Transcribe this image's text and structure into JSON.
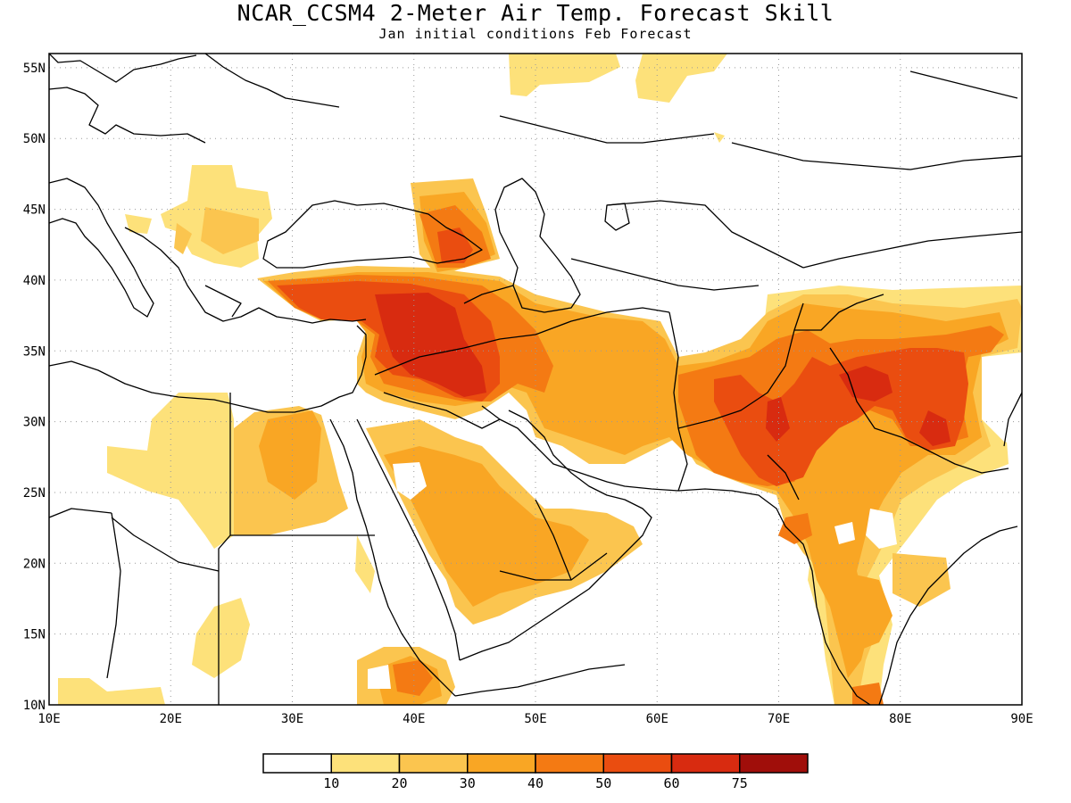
{
  "title": "NCAR_CCSM4 2-Meter Air Temp. Forecast Skill",
  "subtitle": "Jan initial conditions  Feb Forecast",
  "map": {
    "lon_range": [
      10,
      90
    ],
    "lat_range": [
      10,
      56
    ],
    "lon_ticks": [
      "10E",
      "20E",
      "30E",
      "40E",
      "50E",
      "60E",
      "70E",
      "80E",
      "90E"
    ],
    "lat_ticks": [
      "55N",
      "50N",
      "45N",
      "40N",
      "35N",
      "30N",
      "25N",
      "20N",
      "15N",
      "10N"
    ],
    "grid_lines": true,
    "coastline_color": "#000000"
  },
  "legend": {
    "bins": [
      {
        "color": "#ffffff"
      },
      {
        "color": "#fde17a"
      },
      {
        "color": "#fbc54f"
      },
      {
        "color": "#f9a624"
      },
      {
        "color": "#f47a13"
      },
      {
        "color": "#ea4d10"
      },
      {
        "color": "#d82b10"
      },
      {
        "color": "#a00e0a"
      }
    ],
    "labels": [
      "10",
      "20",
      "30",
      "40",
      "50",
      "60",
      "75"
    ]
  }
}
